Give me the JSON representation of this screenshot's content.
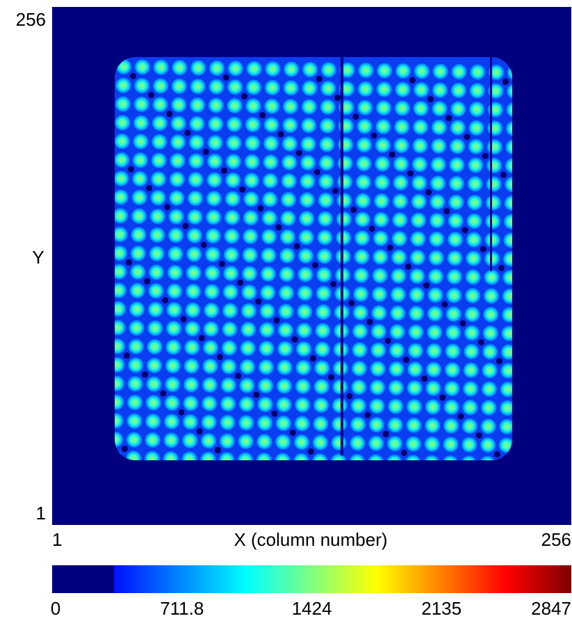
{
  "chart_data": {
    "type": "heatmap",
    "xlabel": "X (column number)",
    "ylabel": "Y",
    "xlim": [
      1,
      256
    ],
    "ylim": [
      1,
      256
    ],
    "xticks": [
      1,
      256
    ],
    "yticks": [
      1,
      256
    ],
    "colorbar": {
      "lim": [
        0,
        2847
      ],
      "ticks": [
        0,
        711.8,
        1424,
        2135,
        2847
      ]
    }
  }
}
